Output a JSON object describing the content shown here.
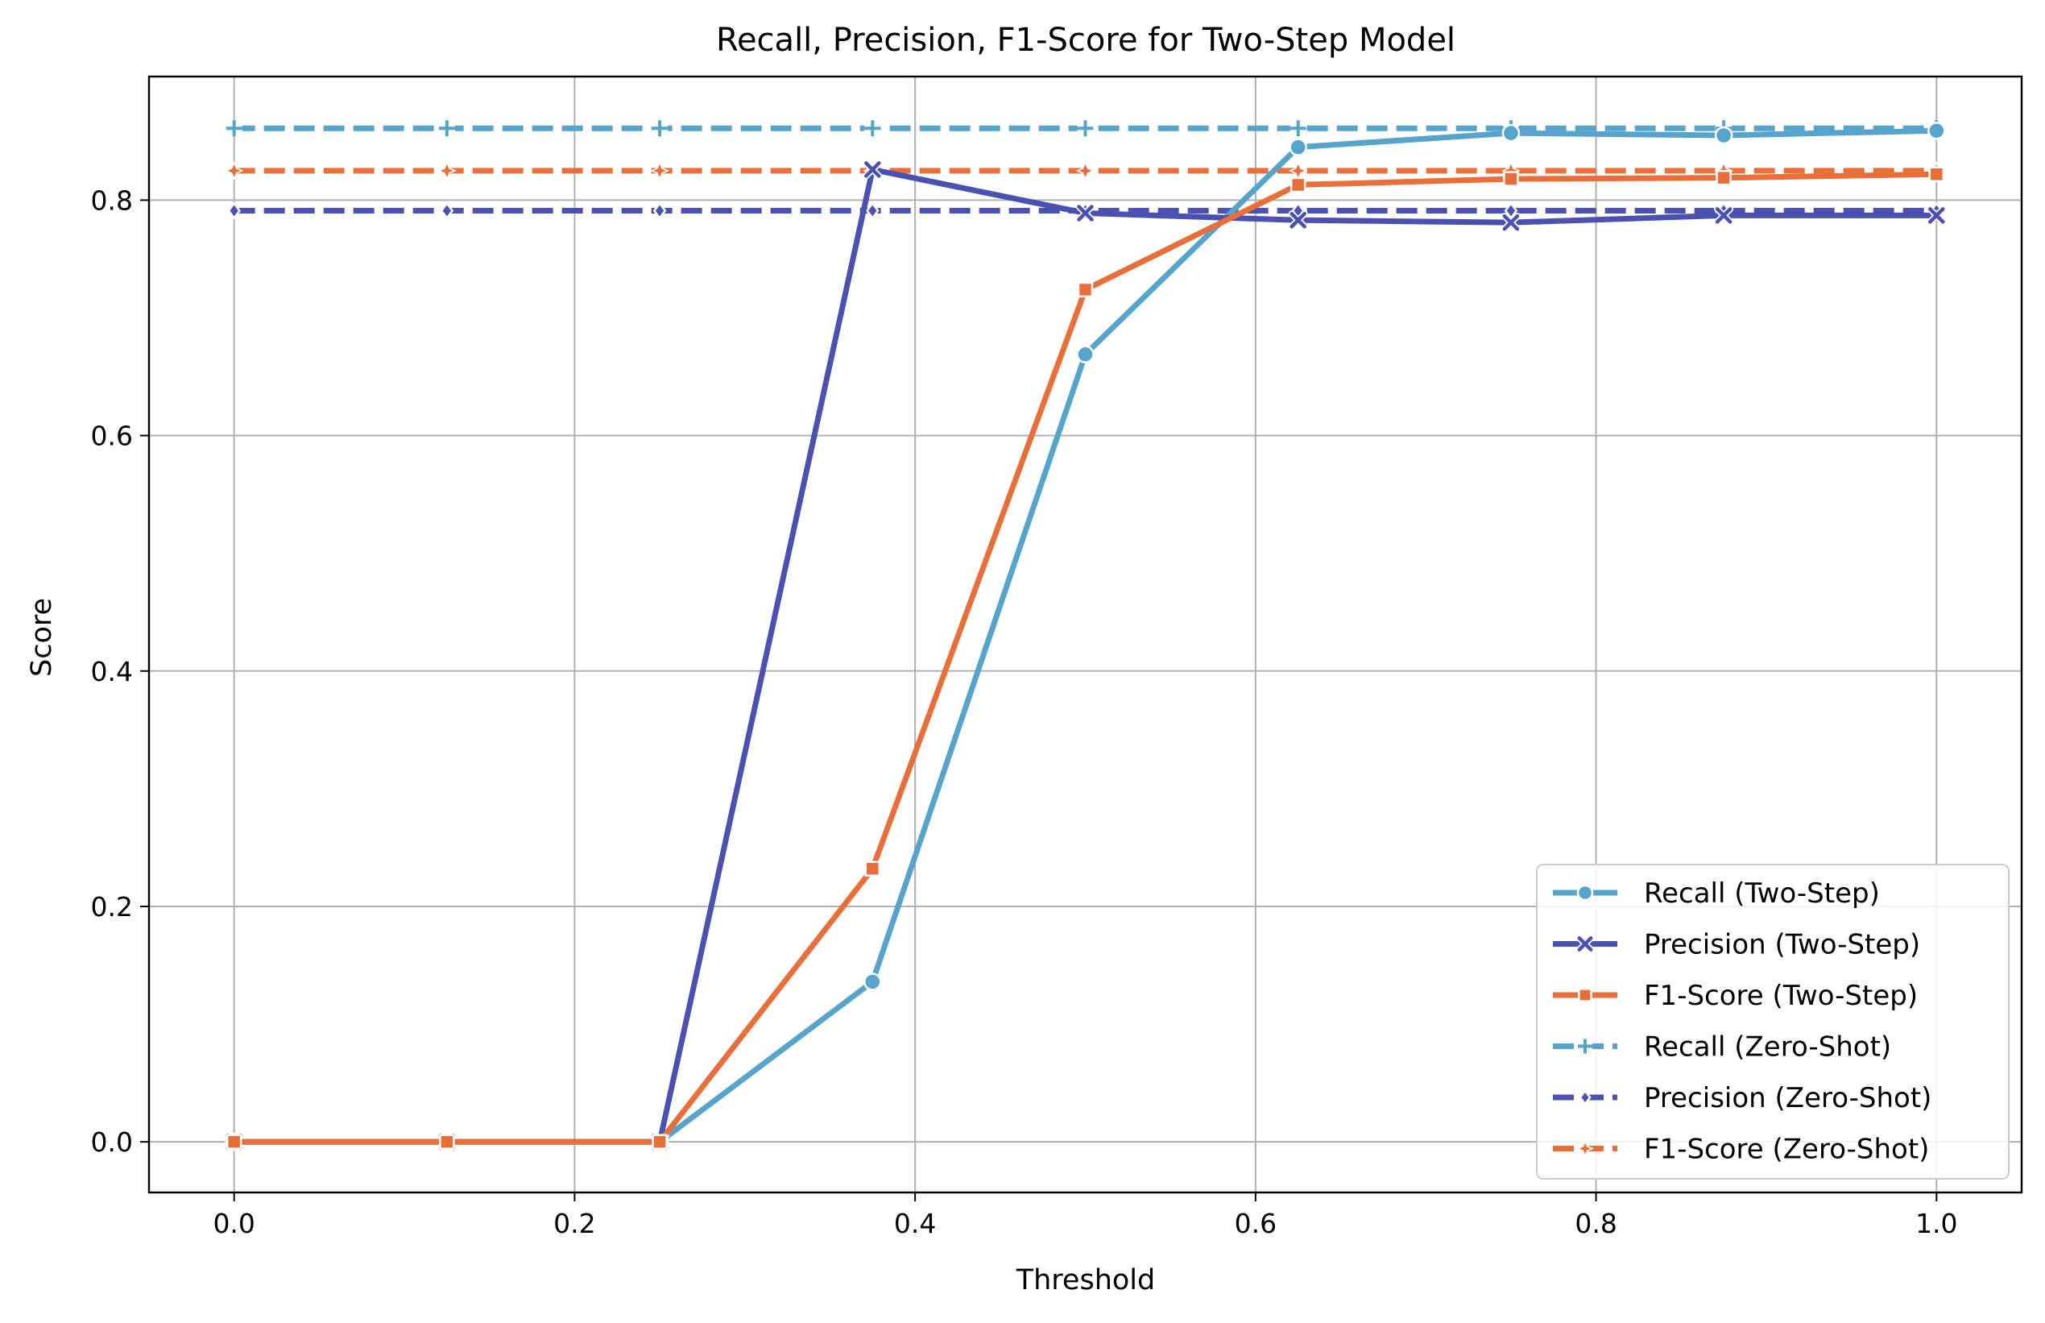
{
  "chart_data": {
    "type": "line",
    "title": "Recall, Precision, F1-Score for Two-Step Model",
    "xlabel": "Threshold",
    "ylabel": "Score",
    "xlim": [
      -0.05,
      1.05
    ],
    "ylim": [
      -0.043,
      0.905
    ],
    "xticks": [
      0.0,
      0.2,
      0.4,
      0.6,
      0.8,
      1.0
    ],
    "xtick_labels": [
      "0.0",
      "0.2",
      "0.4",
      "0.6",
      "0.8",
      "1.0"
    ],
    "yticks": [
      0.0,
      0.2,
      0.4,
      0.6,
      0.8
    ],
    "ytick_labels": [
      "0.0",
      "0.2",
      "0.4",
      "0.6",
      "0.8"
    ],
    "grid": true,
    "legend_position": "lower-right",
    "x": [
      0.0,
      0.125,
      0.25,
      0.375,
      0.5,
      0.625,
      0.75,
      0.875,
      1.0
    ],
    "series": [
      {
        "name": "Recall (Two-Step)",
        "color": "#56a4cc",
        "linestyle": "solid",
        "marker": "circle",
        "values": [
          0.0,
          0.0,
          0.0,
          0.136,
          0.669,
          0.845,
          0.857,
          0.855,
          0.859
        ]
      },
      {
        "name": "Precision (Two-Step)",
        "color": "#4a51b0",
        "linestyle": "solid",
        "marker": "x",
        "values": [
          0.0,
          0.0,
          0.0,
          0.826,
          0.789,
          0.783,
          0.781,
          0.787,
          0.787
        ]
      },
      {
        "name": "F1-Score (Two-Step)",
        "color": "#e86f3a",
        "linestyle": "solid",
        "marker": "square",
        "values": [
          0.0,
          0.0,
          0.0,
          0.232,
          0.724,
          0.813,
          0.818,
          0.819,
          0.822
        ]
      },
      {
        "name": "Recall (Zero-Shot)",
        "color": "#56a4cc",
        "linestyle": "dashed",
        "marker": "plus",
        "values": [
          0.861,
          0.861,
          0.861,
          0.861,
          0.861,
          0.861,
          0.861,
          0.861,
          0.861
        ]
      },
      {
        "name": "Precision (Zero-Shot)",
        "color": "#4a51b0",
        "linestyle": "dashed",
        "marker": "diamond",
        "values": [
          0.791,
          0.791,
          0.791,
          0.791,
          0.791,
          0.791,
          0.791,
          0.791,
          0.791
        ]
      },
      {
        "name": "F1-Score (Zero-Shot)",
        "color": "#e86f3a",
        "linestyle": "dashed",
        "marker": "star",
        "values": [
          0.825,
          0.825,
          0.825,
          0.825,
          0.825,
          0.825,
          0.825,
          0.825,
          0.825
        ]
      }
    ]
  }
}
